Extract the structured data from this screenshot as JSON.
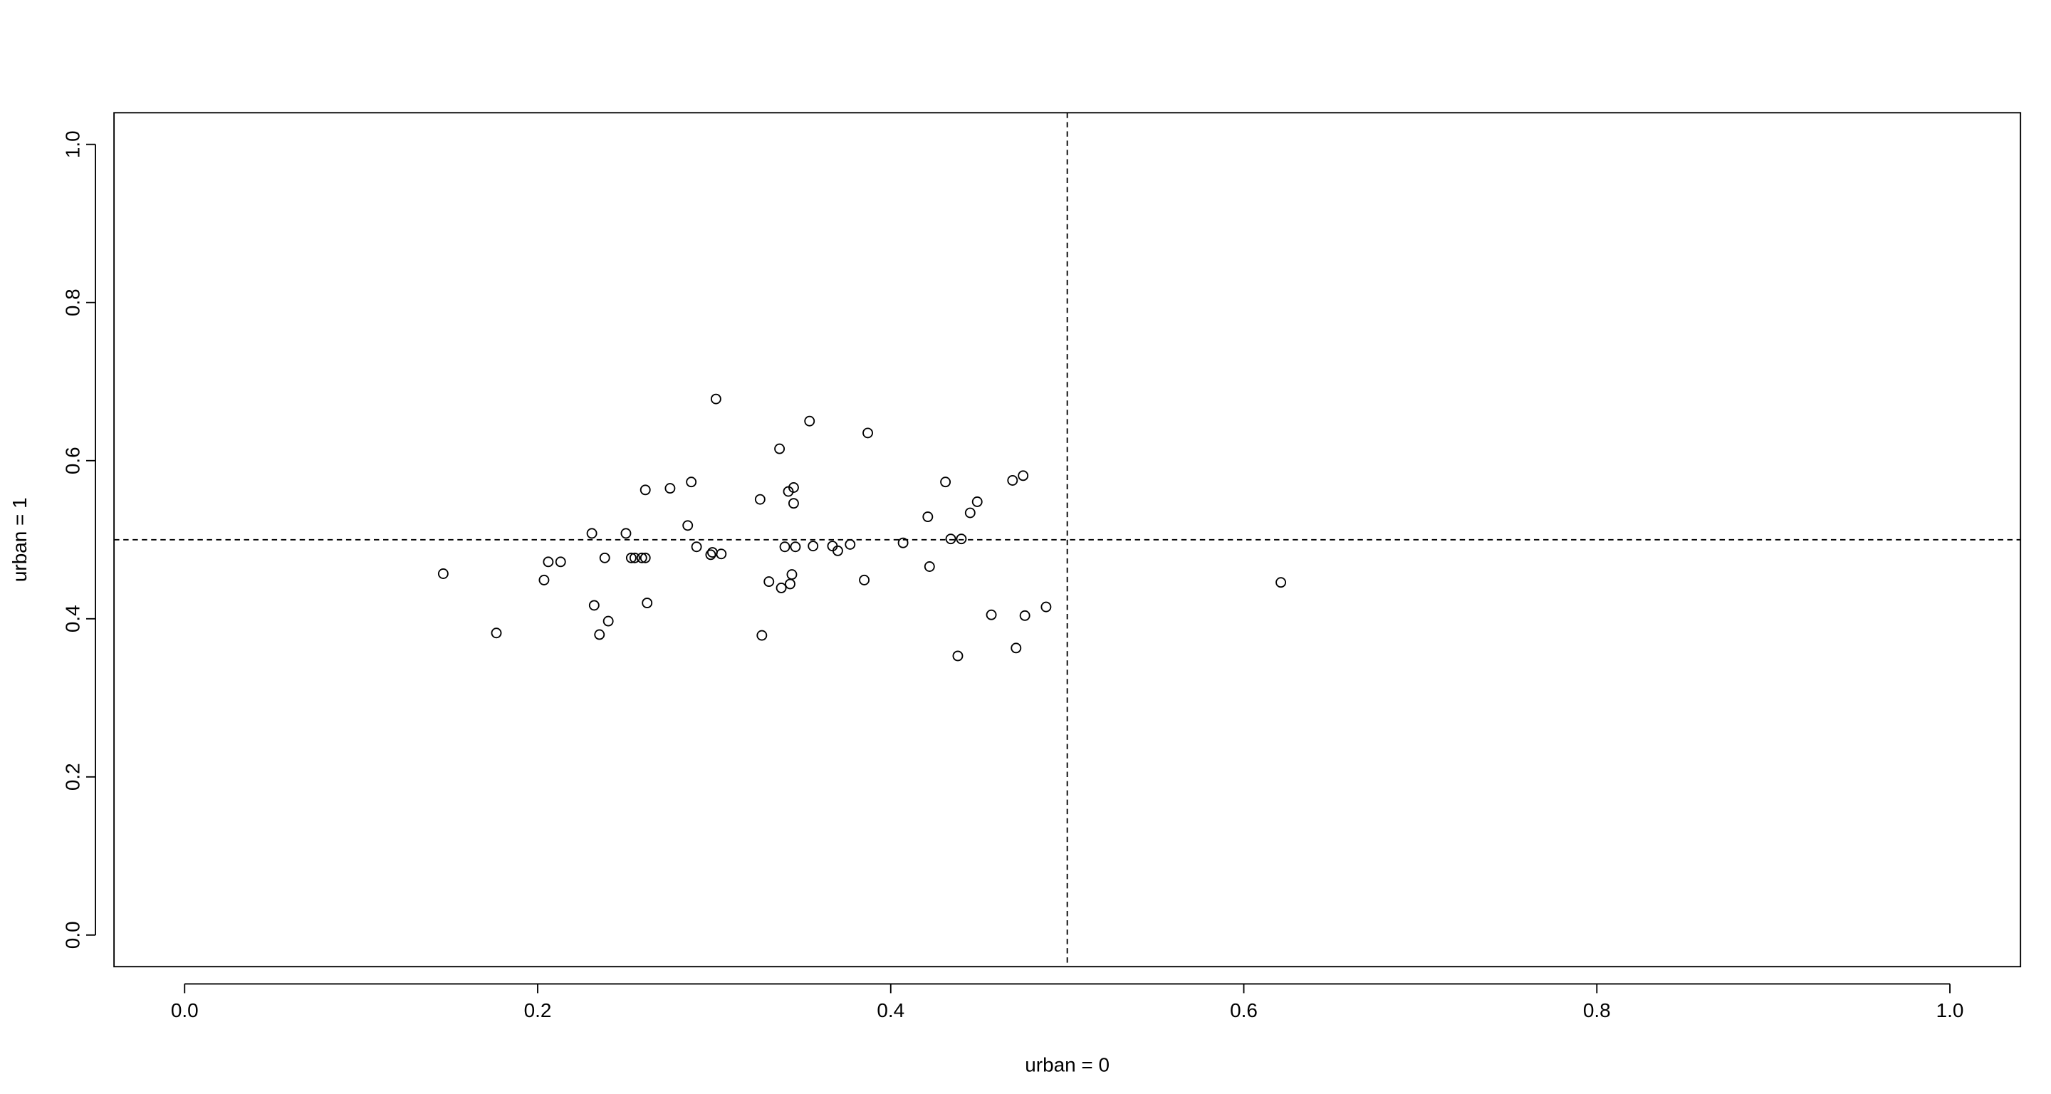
{
  "chart_data": {
    "type": "scatter",
    "x_label": "urban = 0",
    "y_label": "urban = 1",
    "xlim": [
      -0.04,
      1.04
    ],
    "ylim": [
      -0.04,
      1.04
    ],
    "xticks": [
      {
        "value": 0,
        "label": "0.0"
      },
      0.2,
      0.4,
      0.6,
      0.8,
      {
        "value": 1,
        "label": "1.0"
      }
    ],
    "yticks": [
      {
        "value": 0,
        "label": "0.0"
      },
      0.2,
      0.4,
      0.6,
      0.8,
      {
        "value": 1,
        "label": "1.0"
      }
    ],
    "reference_lines": {
      "x": 0.5,
      "y": 0.5
    },
    "color": "#000000",
    "x": [
      0.1465,
      0.1766,
      0.2036,
      0.206,
      0.213,
      0.2307,
      0.232,
      0.235,
      0.238,
      0.24,
      0.25,
      0.253,
      0.255,
      0.259,
      0.261,
      0.261,
      0.262,
      0.275,
      0.285,
      0.287,
      0.29,
      0.298,
      0.299,
      0.301,
      0.304,
      0.326,
      0.327,
      0.331,
      0.337,
      0.338,
      0.34,
      0.342,
      0.343,
      0.344,
      0.345,
      0.345,
      0.346,
      0.354,
      0.356,
      0.367,
      0.37,
      0.377,
      0.385,
      0.387,
      0.407,
      0.421,
      0.422,
      0.431,
      0.434,
      0.438,
      0.44,
      0.445,
      0.449,
      0.457,
      0.469,
      0.471,
      0.475,
      0.476,
      0.488,
      0.621
    ],
    "values": [
      0.457,
      0.382,
      0.449,
      0.472,
      0.472,
      0.508,
      0.417,
      0.38,
      0.477,
      0.397,
      0.508,
      0.477,
      0.477,
      0.477,
      0.477,
      0.563,
      0.42,
      0.565,
      0.518,
      0.573,
      0.491,
      0.481,
      0.484,
      0.678,
      0.482,
      0.551,
      0.379,
      0.447,
      0.615,
      0.439,
      0.491,
      0.561,
      0.444,
      0.456,
      0.566,
      0.546,
      0.491,
      0.65,
      0.492,
      0.492,
      0.486,
      0.494,
      0.449,
      0.635,
      0.496,
      0.529,
      0.466,
      0.573,
      0.501,
      0.353,
      0.501,
      0.534,
      0.548,
      0.405,
      0.575,
      0.363,
      0.581,
      0.404,
      0.415,
      0.446
    ]
  }
}
